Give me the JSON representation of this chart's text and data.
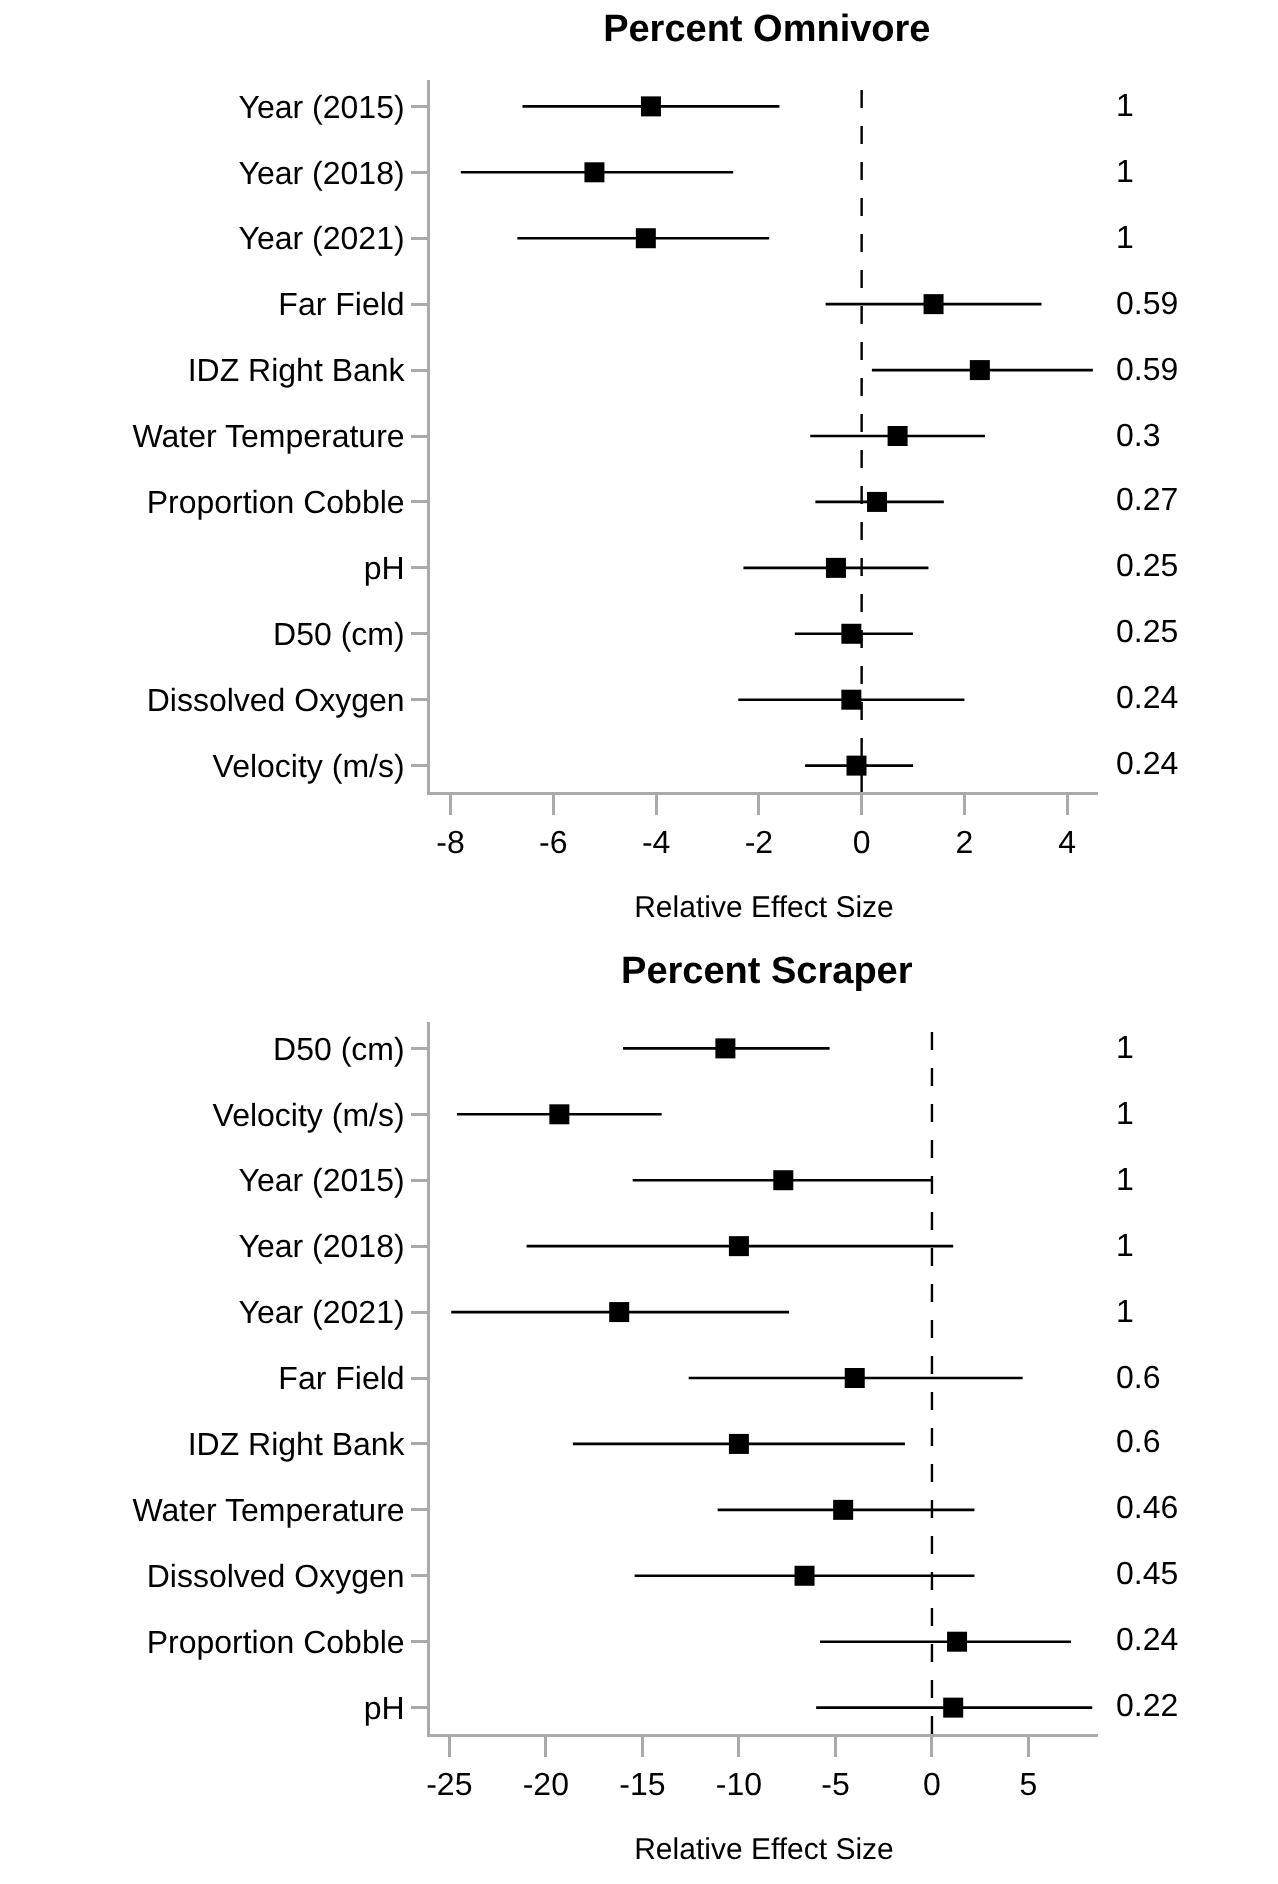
{
  "chart_data": [
    {
      "type": "scatter",
      "title": "Percent Omnivore",
      "xlabel": "Relative Effect Size",
      "orientation": "horizontal",
      "marker": "square",
      "grid": false,
      "categories": [
        "Year (2015)",
        "Year (2018)",
        "Year (2021)",
        "Far Field",
        "IDZ Right Bank",
        "Water Temperature",
        "Proportion Cobble",
        "pH",
        "D50 (cm)",
        "Dissolved Oxygen",
        "Velocity (m/s)"
      ],
      "series": [
        {
          "color": "#000000",
          "values": [
            -4.1,
            -5.2,
            -4.2,
            1.4,
            2.3,
            0.7,
            0.3,
            -0.5,
            -0.2,
            -0.2,
            -0.1
          ],
          "errors": [
            [
              -6.6,
              -1.6
            ],
            [
              -7.8,
              -2.5
            ],
            [
              -6.7,
              -1.8
            ],
            [
              -0.7,
              3.5
            ],
            [
              0.2,
              4.5
            ],
            [
              -1.0,
              2.4
            ],
            [
              -0.9,
              1.6
            ],
            [
              -2.3,
              1.3
            ],
            [
              -1.3,
              1.0
            ],
            [
              -2.4,
              2.0
            ],
            [
              -1.1,
              1.0
            ]
          ]
        }
      ],
      "xlim": [
        -8.4,
        4.6
      ],
      "xticks": [
        -8,
        -6,
        -4,
        -2,
        0,
        2,
        4
      ],
      "ref_lines": [
        {
          "axis": "x",
          "value": 0,
          "line_style": "dashed",
          "color": "#000000"
        }
      ],
      "annotations": [
        "1",
        "1",
        "1",
        "0.59",
        "0.59",
        "0.3",
        "0.27",
        "0.25",
        "0.25",
        "0.24",
        "0.24"
      ]
    },
    {
      "type": "scatter",
      "title": "Percent Scraper",
      "xlabel": "Relative Effect Size",
      "orientation": "horizontal",
      "marker": "square",
      "grid": false,
      "categories": [
        "D50 (cm)",
        "Velocity (m/s)",
        "Year (2015)",
        "Year (2018)",
        "Year (2021)",
        "Far Field",
        "IDZ Right Bank",
        "Water Temperature",
        "Dissolved Oxygen",
        "Proportion Cobble",
        "pH"
      ],
      "series": [
        {
          "color": "#000000",
          "values": [
            -10.7,
            -19.3,
            -7.7,
            -10,
            -16.2,
            -4,
            -10,
            -4.6,
            -6.6,
            1.3,
            1.1
          ],
          "errors": [
            [
              -16,
              -5.3
            ],
            [
              -24.6,
              -14
            ],
            [
              -15.5,
              0
            ],
            [
              -21,
              1.1
            ],
            [
              -24.9,
              -7.4
            ],
            [
              -12.6,
              4.7
            ],
            [
              -18.6,
              -1.4
            ],
            [
              -11.1,
              2.2
            ],
            [
              -15.4,
              2.2
            ],
            [
              -5.8,
              7.2
            ],
            [
              -6,
              8.3
            ]
          ]
        }
      ],
      "xlim": [
        -26,
        8.6
      ],
      "xticks": [
        -25,
        -20,
        -15,
        -10,
        -5,
        0,
        5
      ],
      "ref_lines": [
        {
          "axis": "x",
          "value": 0,
          "line_style": "dashed",
          "color": "#000000"
        }
      ],
      "annotations": [
        "1",
        "1",
        "1",
        "1",
        "1",
        "0.6",
        "0.6",
        "0.46",
        "0.45",
        "0.24",
        "0.22"
      ]
    }
  ]
}
